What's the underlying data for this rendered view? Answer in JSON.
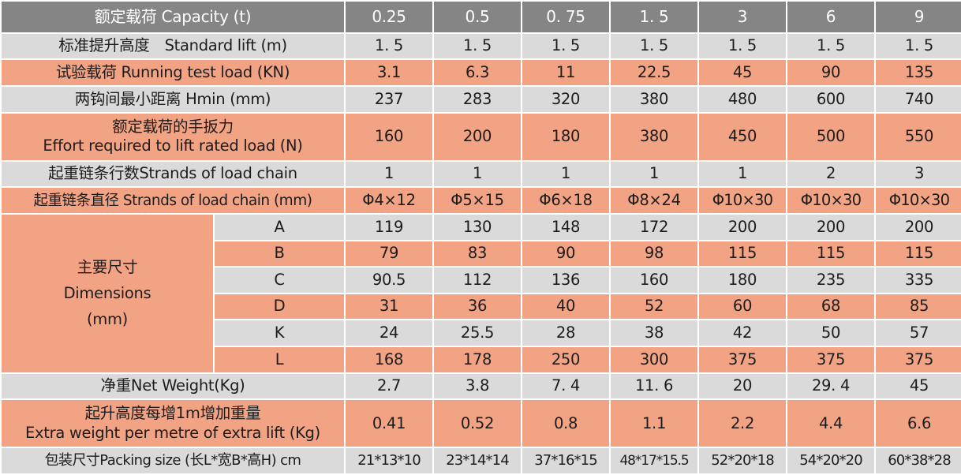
{
  "header": {
    "label": "额定载荷 Capacity (t)",
    "values": [
      "0.25",
      "0.5",
      "0. 75",
      "1. 5",
      "3",
      "6",
      "9"
    ]
  },
  "rows": [
    {
      "label": "标准提升高度　Standard  lift (m)",
      "values": [
        "1. 5",
        "1. 5",
        "1. 5",
        "1. 5",
        "1. 5",
        "1. 5",
        "1. 5"
      ]
    },
    {
      "label": "试验载荷  Running test load (KN)",
      "values": [
        "3.1",
        "6.3",
        "11",
        "22.5",
        "45",
        "90",
        "135"
      ]
    },
    {
      "label": "两钩间最小距离 Hmin  (mm)",
      "values": [
        "237",
        "283",
        "320",
        "380",
        "480",
        "600",
        "740"
      ]
    },
    {
      "label_lines": [
        "额定载荷的手扳力",
        "Effort required to lift rated load (N)"
      ],
      "values": [
        "160",
        "200",
        "180",
        "380",
        "450",
        "500",
        "550"
      ]
    },
    {
      "label": "起重链条行数Strands of load chain",
      "values": [
        "1",
        "1",
        "1",
        "1",
        "1",
        "2",
        "3"
      ]
    },
    {
      "label": "起重链条直径 Strands of load chain (mm)",
      "values": [
        "Φ4×12",
        "Φ5×15",
        "Φ6×18",
        "Φ8×24",
        "Φ10×30",
        "Φ10×30",
        "Φ10×30"
      ]
    }
  ],
  "dimensions": {
    "label_lines": [
      "主要尺寸",
      "Dimensions",
      "(mm)"
    ],
    "rows": [
      {
        "key": "A",
        "values": [
          "119",
          "130",
          "148",
          "172",
          "200",
          "200",
          "200"
        ]
      },
      {
        "key": "B",
        "values": [
          "79",
          "83",
          "90",
          "98",
          "115",
          "115",
          "115"
        ]
      },
      {
        "key": "C",
        "values": [
          "90.5",
          "112",
          "136",
          "160",
          "180",
          "235",
          "335"
        ]
      },
      {
        "key": "D",
        "values": [
          "31",
          "36",
          "40",
          "52",
          "60",
          "68",
          "85"
        ]
      },
      {
        "key": "K",
        "values": [
          "24",
          "25.5",
          "28",
          "38",
          "42",
          "50",
          "57"
        ]
      },
      {
        "key": "L",
        "values": [
          "168",
          "178",
          "250",
          "300",
          "375",
          "375",
          "375"
        ]
      }
    ]
  },
  "rows2": [
    {
      "label": "净重Net Weight(Kg)",
      "values": [
        "2.7",
        "3.8",
        "7. 4",
        "11. 6",
        "20",
        "29. 4",
        "45"
      ]
    },
    {
      "label_lines": [
        "起升高度每增1m增加重量",
        "Extra weight per metre of extra lift (Kg)"
      ],
      "values": [
        "0.41",
        "0.52",
        "0.8",
        "1.1",
        "2.2",
        "4.4",
        "6.6"
      ]
    },
    {
      "label": "包装尺寸Packing size (长L*宽B*高H) cm",
      "values": [
        "21*13*10",
        "23*14*14",
        "37*16*15",
        "48*17*15.5",
        "52*20*18",
        "54*20*20",
        "60*38*28"
      ]
    }
  ],
  "colors": {
    "header": "#858585",
    "gray": "#dadada",
    "orange": "#f2a384"
  }
}
